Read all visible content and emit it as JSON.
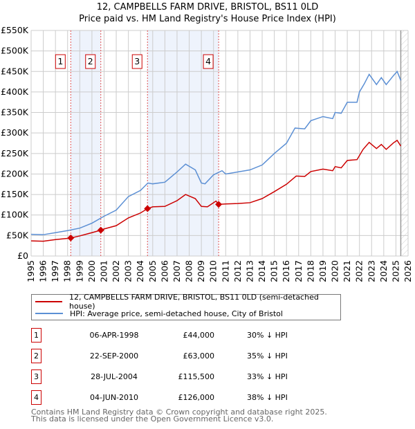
{
  "title": "12, CAMPBELLS FARM DRIVE, BRISTOL, BS11 0LD",
  "subtitle": "Price paid vs. HM Land Registry's House Price Index (HPI)",
  "chart_data": {
    "type": "line",
    "ylim": [
      0,
      550000
    ],
    "xlim": [
      1995,
      2026
    ],
    "yticks": [
      {
        "v": 0,
        "l": "£0"
      },
      {
        "v": 50000,
        "l": "£50K"
      },
      {
        "v": 100000,
        "l": "£100K"
      },
      {
        "v": 150000,
        "l": "£150K"
      },
      {
        "v": 200000,
        "l": "£200K"
      },
      {
        "v": 250000,
        "l": "£250K"
      },
      {
        "v": 300000,
        "l": "£300K"
      },
      {
        "v": 350000,
        "l": "£350K"
      },
      {
        "v": 400000,
        "l": "£400K"
      },
      {
        "v": 450000,
        "l": "£450K"
      },
      {
        "v": 500000,
        "l": "£500K"
      },
      {
        "v": 550000,
        "l": "£550K"
      }
    ],
    "xticks": [
      "1995",
      "1996",
      "1997",
      "1998",
      "1999",
      "2000",
      "2001",
      "2002",
      "2003",
      "2004",
      "2005",
      "2006",
      "2007",
      "2008",
      "2009",
      "2010",
      "2011",
      "2012",
      "2013",
      "2014",
      "2015",
      "2016",
      "2017",
      "2018",
      "2019",
      "2020",
      "2021",
      "2022",
      "2023",
      "2024",
      "2025",
      "2026"
    ],
    "shaded_ranges": [
      [
        1998.26,
        2000.73
      ],
      [
        2004.57,
        2010.42
      ]
    ],
    "forecast_start": 2025.4,
    "series": [
      {
        "name": "12, CAMPBELLS FARM DRIVE, BRISTOL, BS11 0LD (semi-detached house)",
        "color": "#cc0000",
        "x": [
          1995,
          1996,
          1997,
          1998,
          1998.26,
          1999,
          2000,
          2000.73,
          2001,
          2002,
          2003,
          2004,
          2004.57,
          2005,
          2006,
          2007,
          2007.7,
          2008.5,
          2009,
          2009.5,
          2010.2,
          2010.42,
          2011,
          2012,
          2013,
          2014,
          2015,
          2016,
          2016.8,
          2017.5,
          2018,
          2019,
          2019.8,
          2020,
          2020.5,
          2021,
          2021.8,
          2022.3,
          2022.8,
          2023.4,
          2023.8,
          2024.2,
          2024.8,
          2025.1,
          2025.4
        ],
        "y": [
          37000,
          36000,
          40000,
          43000,
          44000,
          49000,
          57000,
          63000,
          66000,
          74000,
          93000,
          105000,
          115500,
          120000,
          121000,
          135000,
          150000,
          140000,
          121000,
          120000,
          134000,
          126000,
          127000,
          128000,
          130000,
          140000,
          157000,
          175000,
          195000,
          194000,
          206000,
          212000,
          208000,
          218000,
          215000,
          233000,
          235000,
          260000,
          277000,
          262000,
          272000,
          260000,
          276000,
          282000,
          268000
        ]
      },
      {
        "name": "HPI: Average price, semi-detached house, City of Bristol",
        "color": "#5b8fd4",
        "x": [
          1995,
          1996,
          1997,
          1998,
          1999,
          2000,
          2001,
          2002,
          2003,
          2004,
          2004.6,
          2005,
          2006,
          2007,
          2007.7,
          2008.5,
          2009,
          2009.3,
          2010,
          2010.7,
          2011,
          2012,
          2013,
          2014,
          2015,
          2016,
          2016.7,
          2017.5,
          2018,
          2019,
          2019.8,
          2020,
          2020.5,
          2021,
          2021.8,
          2022,
          2022.4,
          2022.8,
          2023.4,
          2023.8,
          2024.2,
          2024.8,
          2025.1,
          2025.4
        ],
        "y": [
          53000,
          52000,
          57000,
          62000,
          68000,
          80000,
          97000,
          112000,
          145000,
          160000,
          178000,
          176000,
          180000,
          205000,
          224000,
          210000,
          178000,
          176000,
          198000,
          208000,
          200000,
          205000,
          210000,
          222000,
          250000,
          275000,
          312000,
          310000,
          330000,
          340000,
          335000,
          350000,
          348000,
          375000,
          375000,
          400000,
          420000,
          443000,
          418000,
          435000,
          418000,
          440000,
          450000,
          428000
        ]
      }
    ],
    "sales": [
      {
        "n": "1",
        "x": 1998.26,
        "y": 44000,
        "date": "06-APR-1998",
        "price": "£44,000",
        "pct": "30% ↓ HPI"
      },
      {
        "n": "2",
        "x": 2000.73,
        "y": 63000,
        "date": "22-SEP-2000",
        "price": "£63,000",
        "pct": "35% ↓ HPI"
      },
      {
        "n": "3",
        "x": 2004.57,
        "y": 115500,
        "date": "28-JUL-2004",
        "price": "£115,500",
        "pct": "33% ↓ HPI"
      },
      {
        "n": "4",
        "x": 2010.42,
        "y": 126000,
        "date": "04-JUN-2010",
        "price": "£126,000",
        "pct": "38% ↓ HPI"
      }
    ]
  },
  "legend": {
    "red": "12, CAMPBELLS FARM DRIVE, BRISTOL, BS11 0LD (semi-detached house)",
    "blue": "HPI: Average price, semi-detached house, City of Bristol"
  },
  "footer": {
    "line1": "Contains HM Land Registry data © Crown copyright and database right 2025.",
    "line2": "This data is licensed under the Open Government Licence v3.0."
  }
}
